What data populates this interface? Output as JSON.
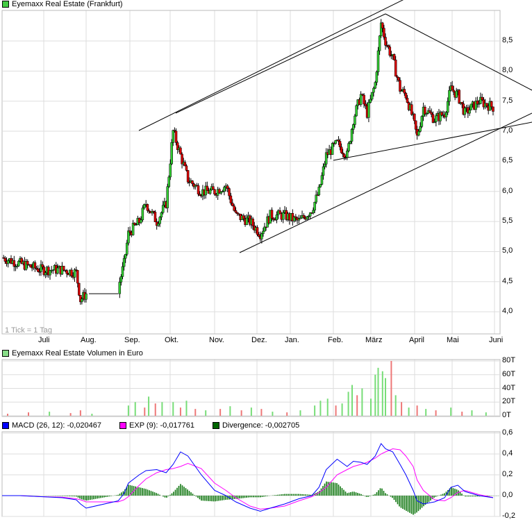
{
  "price_panel": {
    "title": "Eyemaxx Real Estate (Frankfurt)",
    "title_color": "#44cc44",
    "tick_note": "1 Tick = 1 Tag"
  },
  "volume_panel": {
    "title": "Eyemaxx Real Estate Volumen in Euro",
    "title_color": "#88dd88"
  },
  "macd_panel": {
    "legend": [
      {
        "label": "MACD (26, 12): -0,020467",
        "color": "#0000ff"
      },
      {
        "label": "EXP (9): -0,017761",
        "color": "#ff00ff"
      },
      {
        "label": "Divergence: -0,002705",
        "color": "#006600"
      }
    ]
  },
  "chart_data": [
    {
      "type": "candlestick",
      "title": "Eyemaxx Real Estate (Frankfurt)",
      "x_ticks": [
        "Juli",
        "Aug.",
        "Sep.",
        "Okt.",
        "Nov.",
        "Dez.",
        "Jan.",
        "Feb.",
        "März",
        "April",
        "Mai",
        "Juni"
      ],
      "y_ticks": [
        "4,0",
        "4,5",
        "5,0",
        "5,5",
        "6,0",
        "6,5",
        "7,0",
        "7,5",
        "8,0",
        "8,5"
      ],
      "ylim": [
        3.65,
        9.0
      ],
      "grid": true,
      "up_color": "#33cc33",
      "down_color": "#dd0000",
      "close": [
        [
          "01.06.",
          4.9
        ],
        [
          "14.06.",
          4.8
        ],
        [
          "29.06.",
          4.7
        ],
        [
          "14.07.",
          4.7
        ],
        [
          "24.07.",
          4.65
        ],
        [
          "27.07.",
          4.2
        ],
        [
          "01.08.",
          4.3
        ],
        [
          "23.08.",
          4.4
        ],
        [
          "27.08.",
          4.8
        ],
        [
          "30.08.",
          5.3
        ],
        [
          "08.09.",
          5.5
        ],
        [
          "13.09.",
          5.8
        ],
        [
          "21.09.",
          5.5
        ],
        [
          "28.09.",
          5.8
        ],
        [
          "03.10.",
          7.0
        ],
        [
          "08.10.",
          6.6
        ],
        [
          "13.10.",
          6.2
        ],
        [
          "22.10.",
          6.0
        ],
        [
          "01.11.",
          6.0
        ],
        [
          "09.11.",
          6.1
        ],
        [
          "16.11.",
          5.6
        ],
        [
          "26.11.",
          5.5
        ],
        [
          "04.12.",
          5.3
        ],
        [
          "13.12.",
          5.6
        ],
        [
          "26.12.",
          5.6
        ],
        [
          "07.01.",
          5.5
        ],
        [
          "16.01.",
          5.7
        ],
        [
          "21.01.",
          6.0
        ],
        [
          "26.01.",
          6.6
        ],
        [
          "04.02.",
          6.8
        ],
        [
          "12.02.",
          6.6
        ],
        [
          "17.02.",
          7.2
        ],
        [
          "23.02.",
          7.6
        ],
        [
          "28.02.",
          7.3
        ],
        [
          "04.03.",
          7.8
        ],
        [
          "08.03.",
          8.8
        ],
        [
          "11.03.",
          8.5
        ],
        [
          "16.03.",
          8.2
        ],
        [
          "21.03.",
          7.7
        ],
        [
          "25.03.",
          7.6
        ],
        [
          "30.03.",
          7.2
        ],
        [
          "03.04.",
          6.9
        ],
        [
          "08.04.",
          7.4
        ],
        [
          "17.04.",
          7.2
        ],
        [
          "25.04.",
          7.3
        ],
        [
          "30.04.",
          7.7
        ],
        [
          "05.05.",
          7.6
        ],
        [
          "10.05.",
          7.3
        ],
        [
          "20.05.",
          7.5
        ],
        [
          "30.05.",
          7.4
        ]
      ]
    },
    {
      "type": "bar",
      "title": "Eyemaxx Real Estate Volumen in Euro",
      "y_ticks": [
        "0T",
        "20T",
        "40T",
        "60T",
        "80T"
      ],
      "ylim": [
        0,
        80
      ],
      "unit": "T",
      "values": [
        [
          "05.06.",
          3,
          "d"
        ],
        [
          "20.06.",
          5,
          "d"
        ],
        [
          "05.07.",
          6,
          "u"
        ],
        [
          "20.07.",
          4,
          "d"
        ],
        [
          "27.07.",
          8,
          "d"
        ],
        [
          "05.08.",
          3,
          "u"
        ],
        [
          "30.08.",
          15,
          "u"
        ],
        [
          "05.09.",
          20,
          "u"
        ],
        [
          "12.09.",
          12,
          "d"
        ],
        [
          "15.09.",
          28,
          "u"
        ],
        [
          "20.09.",
          18,
          "d"
        ],
        [
          "25.09.",
          20,
          "u"
        ],
        [
          "03.10.",
          20,
          "u"
        ],
        [
          "08.10.",
          12,
          "d"
        ],
        [
          "12.10.",
          22,
          "u"
        ],
        [
          "18.10.",
          10,
          "d"
        ],
        [
          "25.10.",
          8,
          "u"
        ],
        [
          "05.11.",
          10,
          "d"
        ],
        [
          "12.11.",
          14,
          "u"
        ],
        [
          "20.11.",
          8,
          "d"
        ],
        [
          "27.11.",
          12,
          "u"
        ],
        [
          "05.12.",
          10,
          "d"
        ],
        [
          "15.12.",
          6,
          "u"
        ],
        [
          "28.12.",
          5,
          "d"
        ],
        [
          "08.01.",
          8,
          "u"
        ],
        [
          "18.01.",
          15,
          "u"
        ],
        [
          "22.01.",
          22,
          "u"
        ],
        [
          "27.01.",
          25,
          "u"
        ],
        [
          "03.02.",
          15,
          "d"
        ],
        [
          "08.02.",
          18,
          "u"
        ],
        [
          "13.02.",
          35,
          "u"
        ],
        [
          "16.02.",
          45,
          "u"
        ],
        [
          "20.02.",
          30,
          "d"
        ],
        [
          "24.02.",
          40,
          "u"
        ],
        [
          "01.03.",
          25,
          "u"
        ],
        [
          "04.03.",
          60,
          "u"
        ],
        [
          "06.03.",
          70,
          "u"
        ],
        [
          "09.03.",
          65,
          "u"
        ],
        [
          "11.03.",
          55,
          "u"
        ],
        [
          "15.03.",
          80,
          "d"
        ],
        [
          "18.03.",
          30,
          "u"
        ],
        [
          "22.03.",
          20,
          "d"
        ],
        [
          "27.03.",
          12,
          "u"
        ],
        [
          "03.04.",
          15,
          "d"
        ],
        [
          "10.04.",
          10,
          "u"
        ],
        [
          "18.04.",
          8,
          "d"
        ],
        [
          "30.04.",
          12,
          "u"
        ],
        [
          "08.05.",
          6,
          "d"
        ],
        [
          "15.05.",
          8,
          "u"
        ],
        [
          "25.05.",
          5,
          "u"
        ]
      ]
    },
    {
      "type": "line",
      "y_ticks": [
        "-0,2",
        "0,0",
        "0,2",
        "0,4",
        "0,6"
      ],
      "ylim": [
        -0.2,
        0.6
      ],
      "series": [
        {
          "name": "MACD (26, 12)",
          "color": "#0000ff",
          "values": [
            [
              "01.06.",
              0.0
            ],
            [
              "14.06.",
              0.0
            ],
            [
              "29.06.",
              -0.01
            ],
            [
              "14.07.",
              -0.02
            ],
            [
              "24.07.",
              -0.04
            ],
            [
              "27.07.",
              -0.08
            ],
            [
              "01.08.",
              -0.12
            ],
            [
              "23.08.",
              -0.05
            ],
            [
              "27.08.",
              0.02
            ],
            [
              "30.08.",
              0.12
            ],
            [
              "08.09.",
              0.2
            ],
            [
              "13.09.",
              0.24
            ],
            [
              "21.09.",
              0.25
            ],
            [
              "28.09.",
              0.22
            ],
            [
              "03.10.",
              0.3
            ],
            [
              "08.10.",
              0.42
            ],
            [
              "13.10.",
              0.38
            ],
            [
              "22.10.",
              0.2
            ],
            [
              "01.11.",
              0.05
            ],
            [
              "09.11.",
              0.0
            ],
            [
              "16.11.",
              -0.06
            ],
            [
              "26.11.",
              -0.12
            ],
            [
              "04.12.",
              -0.15
            ],
            [
              "13.12.",
              -0.12
            ],
            [
              "26.12.",
              -0.08
            ],
            [
              "07.01.",
              -0.03
            ],
            [
              "16.01.",
              0.0
            ],
            [
              "21.01.",
              0.08
            ],
            [
              "26.01.",
              0.25
            ],
            [
              "04.02.",
              0.35
            ],
            [
              "12.02.",
              0.28
            ],
            [
              "17.02.",
              0.33
            ],
            [
              "23.02.",
              0.32
            ],
            [
              "28.02.",
              0.3
            ],
            [
              "04.03.",
              0.38
            ],
            [
              "08.03.",
              0.5
            ],
            [
              "11.03.",
              0.45
            ],
            [
              "16.03.",
              0.42
            ],
            [
              "21.03.",
              0.3
            ],
            [
              "25.03.",
              0.2
            ],
            [
              "30.03.",
              0.05
            ],
            [
              "03.04.",
              -0.05
            ],
            [
              "08.04.",
              -0.08
            ],
            [
              "17.04.",
              -0.06
            ],
            [
              "25.04.",
              -0.02
            ],
            [
              "30.04.",
              0.08
            ],
            [
              "05.05.",
              0.1
            ],
            [
              "10.05.",
              0.04
            ],
            [
              "20.05.",
              0.0
            ],
            [
              "30.05.",
              -0.02
            ]
          ]
        },
        {
          "name": "EXP (9)",
          "color": "#ff00ff",
          "values": [
            [
              "01.06.",
              0.0
            ],
            [
              "14.06.",
              0.0
            ],
            [
              "29.06.",
              -0.01
            ],
            [
              "14.07.",
              -0.015
            ],
            [
              "24.07.",
              -0.03
            ],
            [
              "27.07.",
              -0.04
            ],
            [
              "01.08.",
              -0.06
            ],
            [
              "23.08.",
              -0.06
            ],
            [
              "27.08.",
              -0.04
            ],
            [
              "30.08.",
              -0.01
            ],
            [
              "08.09.",
              0.1
            ],
            [
              "13.09.",
              0.16
            ],
            [
              "21.09.",
              0.22
            ],
            [
              "28.09.",
              0.25
            ],
            [
              "03.10.",
              0.26
            ],
            [
              "08.10.",
              0.28
            ],
            [
              "13.10.",
              0.31
            ],
            [
              "22.10.",
              0.26
            ],
            [
              "01.11.",
              0.12
            ],
            [
              "09.11.",
              0.05
            ],
            [
              "16.11.",
              -0.02
            ],
            [
              "26.11.",
              -0.1
            ],
            [
              "04.12.",
              -0.13
            ],
            [
              "13.12.",
              -0.12
            ],
            [
              "26.12.",
              -0.1
            ],
            [
              "07.01.",
              -0.05
            ],
            [
              "16.01.",
              -0.01
            ],
            [
              "21.01.",
              0.03
            ],
            [
              "26.01.",
              0.08
            ],
            [
              "04.02.",
              0.2
            ],
            [
              "12.02.",
              0.25
            ],
            [
              "17.02.",
              0.28
            ],
            [
              "23.02.",
              0.3
            ],
            [
              "28.02.",
              0.32
            ],
            [
              "04.03.",
              0.36
            ],
            [
              "08.03.",
              0.4
            ],
            [
              "11.03.",
              0.42
            ],
            [
              "16.03.",
              0.45
            ],
            [
              "21.03.",
              0.44
            ],
            [
              "25.03.",
              0.38
            ],
            [
              "30.03.",
              0.28
            ],
            [
              "03.04.",
              0.15
            ],
            [
              "08.04.",
              0.05
            ],
            [
              "17.04.",
              -0.04
            ],
            [
              "25.04.",
              -0.05
            ],
            [
              "30.04.",
              -0.02
            ],
            [
              "05.05.",
              0.03
            ],
            [
              "10.05.",
              0.05
            ],
            [
              "20.05.",
              0.01
            ],
            [
              "30.05.",
              -0.018
            ]
          ]
        },
        {
          "name": "Divergence",
          "color": "#006600",
          "type": "bar"
        }
      ]
    }
  ]
}
